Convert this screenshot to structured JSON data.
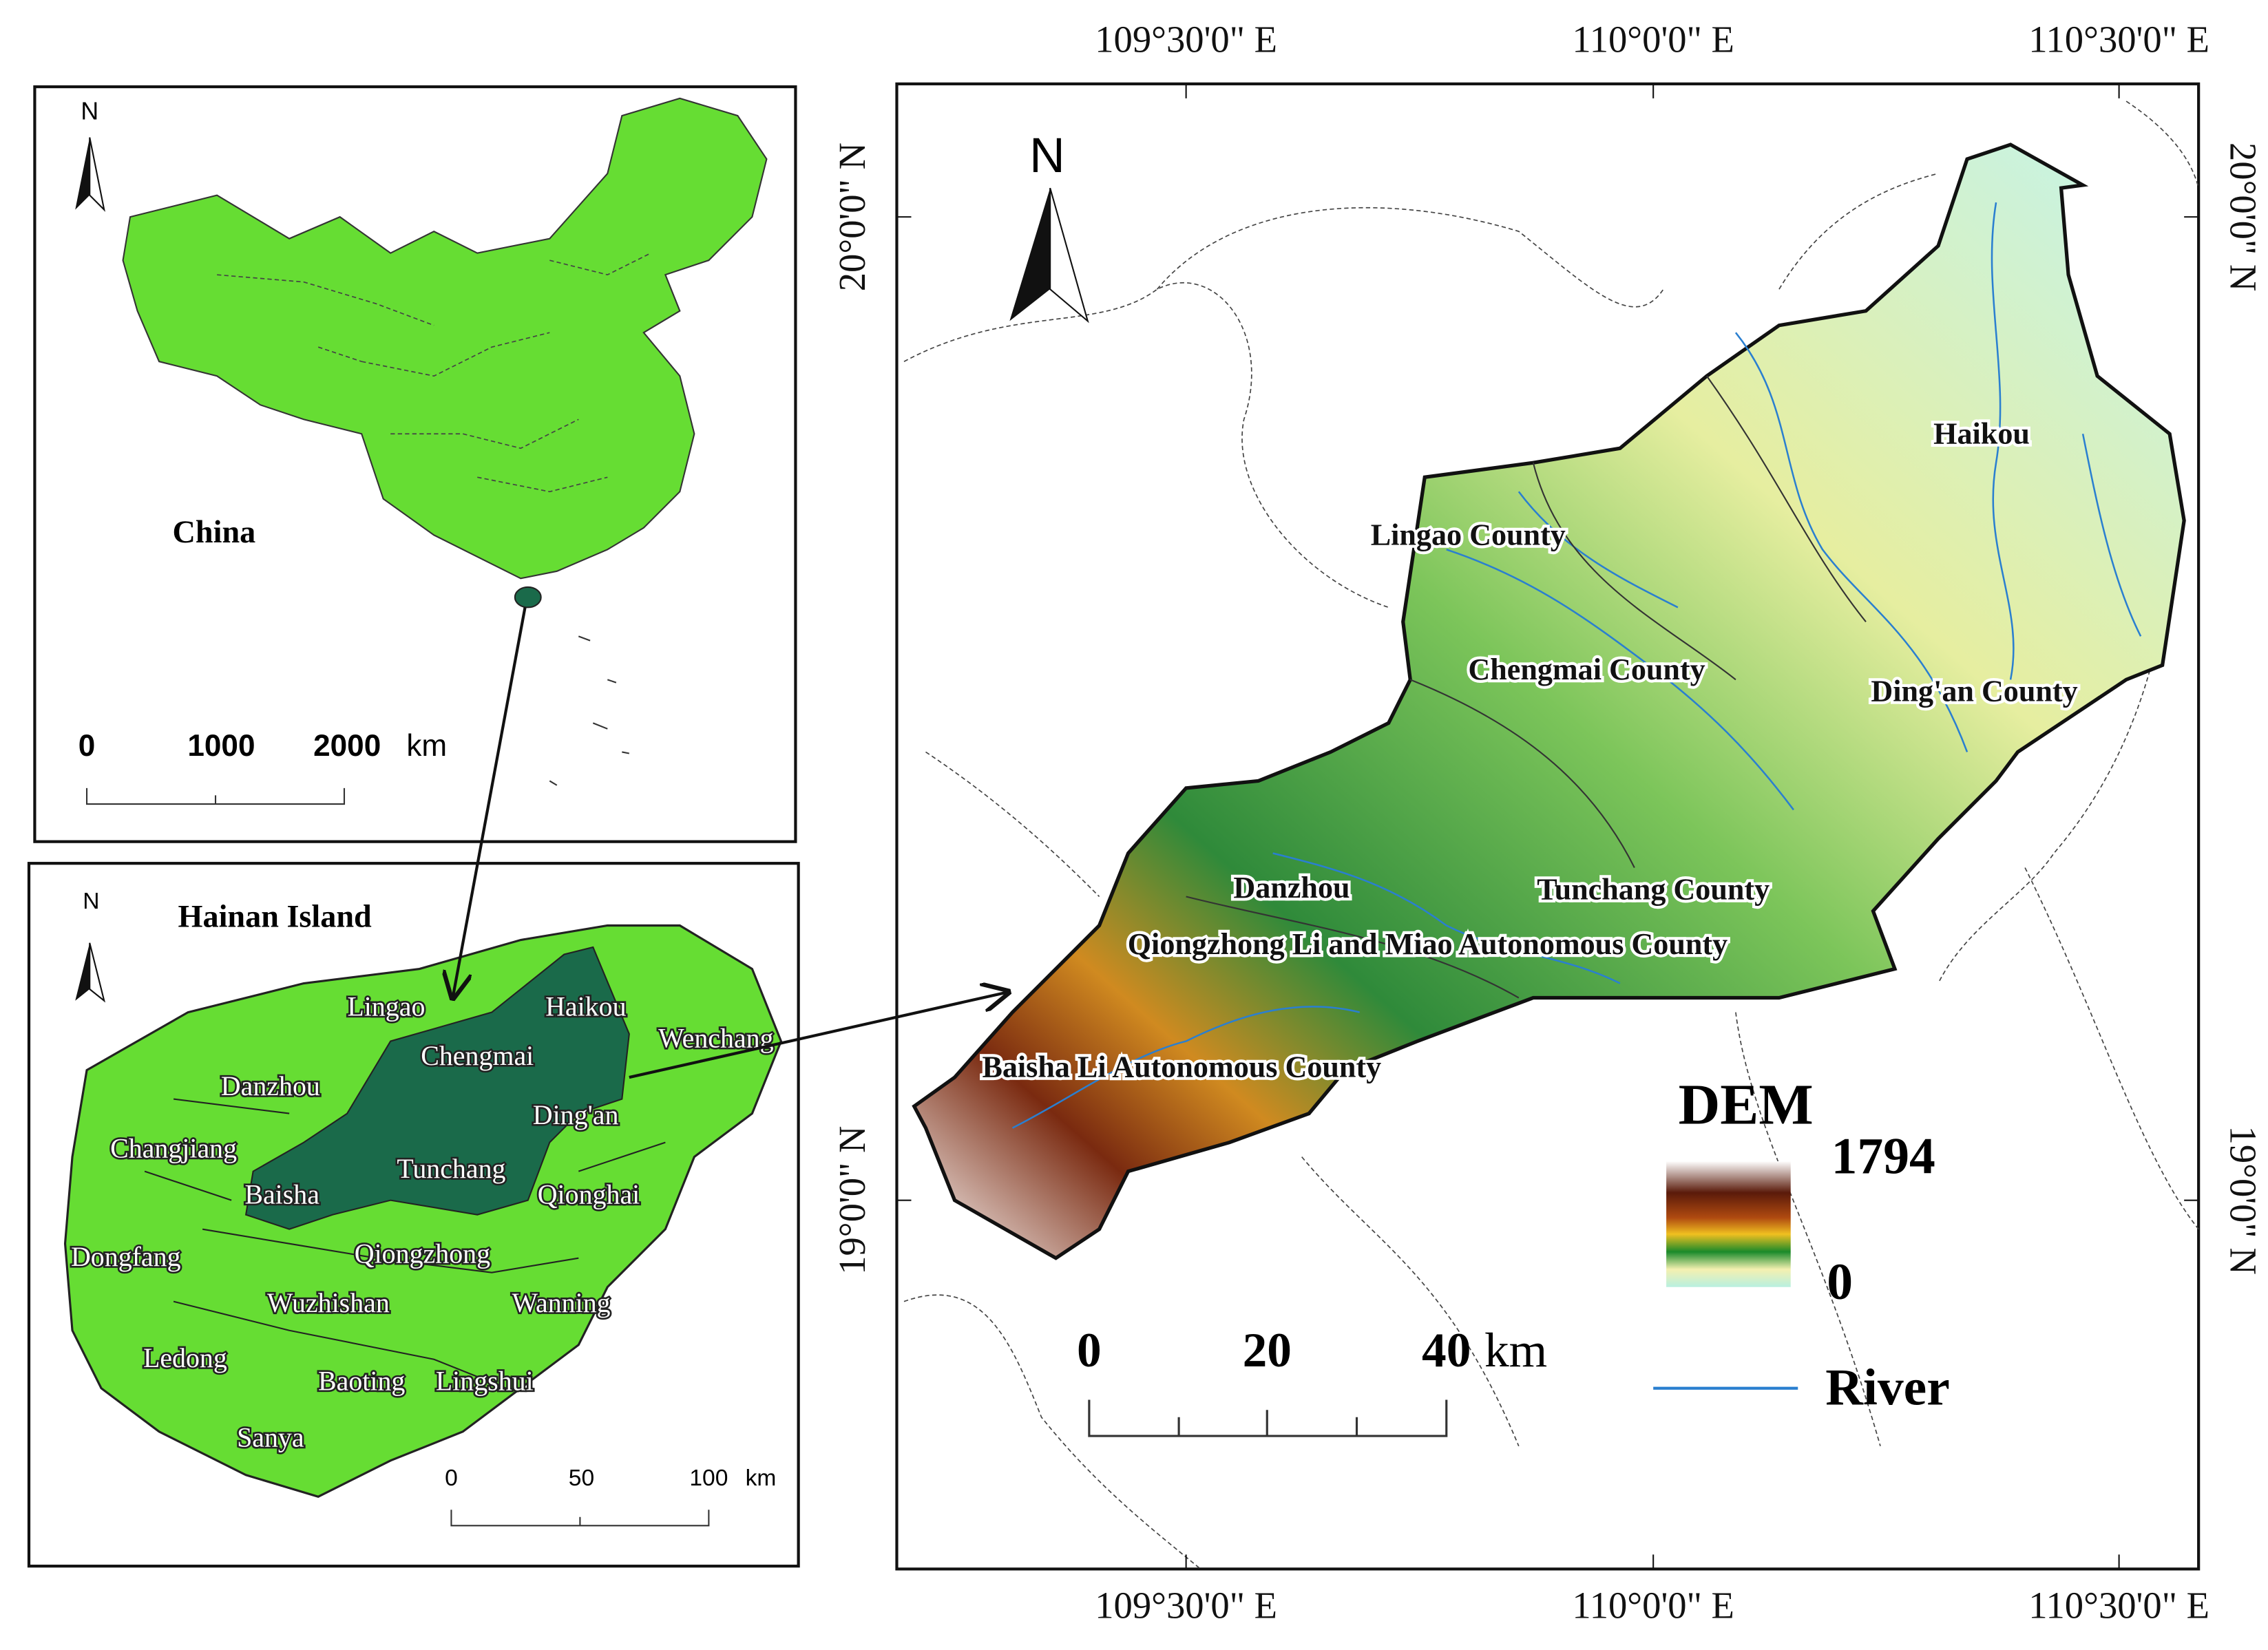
{
  "china_map": {
    "north": "N",
    "label": "China",
    "scale": {
      "ticks": [
        "0",
        "1000",
        "2000"
      ],
      "unit": "km"
    }
  },
  "hainan_map": {
    "title": "Hainan Island",
    "north": "N",
    "counties": [
      "Lingao",
      "Haikou",
      "Wenchang",
      "Chengmai",
      "Danzhou",
      "Ding'an",
      "Changjiang",
      "Baisha",
      "Tunchang",
      "Qionghai",
      "Dongfang",
      "Qiongzhong",
      "Wuzhishan",
      "Wanning",
      "Ledong",
      "Baoting",
      "Lingshui",
      "Sanya"
    ],
    "scale": {
      "ticks": [
        "0",
        "50",
        "100"
      ],
      "unit": "km"
    }
  },
  "main_map": {
    "north": "N",
    "longitudes": [
      "109°30'0\" E",
      "110°0'0\" E",
      "110°30'0\" E"
    ],
    "latitudes": [
      "20°0'0\" N",
      "19°0'0\" N"
    ],
    "regions": [
      "Haikou",
      "Lingao County",
      "Chengmai County",
      "Ding'an County",
      "Danzhou",
      "Tunchang County",
      "Qiongzhong Li and Miao Autonomous County",
      "Baisha Li Autonomous County"
    ],
    "legend": {
      "title": "DEM",
      "max": 1794,
      "min": 0,
      "river": "River"
    },
    "scale": {
      "ticks": [
        "0",
        "20",
        "40"
      ],
      "unit": "km"
    }
  }
}
